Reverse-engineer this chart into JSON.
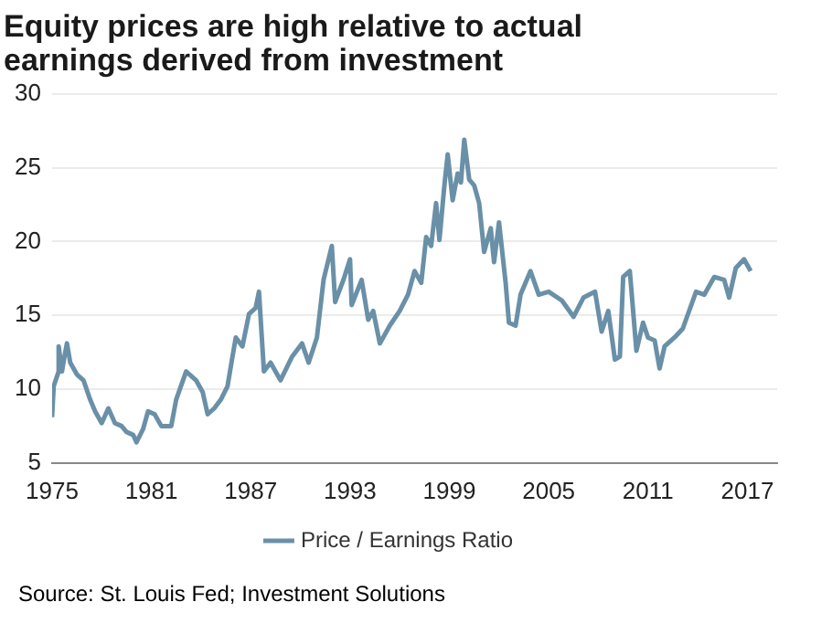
{
  "chart_data": {
    "type": "line",
    "title": [
      "Equity prices are high relative to actual",
      "earnings derived from investment"
    ],
    "xlim": [
      1975,
      2018.8
    ],
    "xticks": [
      1975,
      1981,
      1987,
      1993,
      1999,
      2005,
      2011,
      2017
    ],
    "ylim": [
      5,
      30
    ],
    "yticks": [
      5,
      10,
      15,
      20,
      25,
      30
    ],
    "grid": "y",
    "legend": "bottom",
    "marker": "none",
    "annotations": [
      "Source: St. Louis Fed; Investment Solutions"
    ],
    "series": [
      {
        "name": "Price / Earnings Ratio",
        "color": "#6a90a8",
        "x": [
          1975.0,
          1975.1,
          1975.4,
          1975.4,
          1975.6,
          1975.75,
          1975.9,
          1976.1,
          1976.5,
          1976.9,
          1977.3,
          1977.6,
          1978.0,
          1978.4,
          1978.8,
          1979.2,
          1979.5,
          1979.9,
          1980.1,
          1980.5,
          1980.8,
          1981.2,
          1981.6,
          1982.0,
          1982.2,
          1982.5,
          1983.1,
          1983.7,
          1984.1,
          1984.4,
          1984.8,
          1985.2,
          1985.6,
          1985.9,
          1986.1,
          1986.5,
          1986.9,
          1987.3,
          1987.5,
          1987.8,
          1988.2,
          1988.8,
          1989.5,
          1990.1,
          1990.5,
          1991.0,
          1991.4,
          1991.9,
          1992.1,
          1992.6,
          1993.0,
          1993.1,
          1993.7,
          1994.1,
          1994.4,
          1994.8,
          1995.4,
          1996.0,
          1996.5,
          1996.9,
          1997.3,
          1997.6,
          1997.9,
          1998.2,
          1998.4,
          1998.7,
          1998.9,
          1999.2,
          1999.5,
          1999.7,
          1999.9,
          2000.2,
          2000.5,
          2000.8,
          2001.1,
          2001.5,
          2001.7,
          2002.0,
          2002.4,
          2002.6,
          2003.0,
          2003.3,
          2003.9,
          2004.4,
          2005.0,
          2005.8,
          2006.5,
          2007.1,
          2007.8,
          2008.2,
          2008.6,
          2009.0,
          2009.3,
          2009.5,
          2009.9,
          2010.3,
          2010.7,
          2011.0,
          2011.4,
          2011.7,
          2012.0,
          2012.6,
          2013.1,
          2013.9,
          2014.4,
          2015.0,
          2015.6,
          2015.9,
          2016.3,
          2016.8,
          2017.2
        ],
        "values": [
          8.1,
          10.2,
          11.2,
          12.9,
          11.2,
          12.2,
          13.1,
          11.8,
          11.0,
          10.6,
          9.3,
          8.5,
          7.7,
          8.7,
          7.7,
          7.5,
          7.1,
          6.9,
          6.4,
          7.3,
          8.5,
          8.3,
          7.5,
          7.5,
          7.5,
          9.3,
          11.2,
          10.6,
          9.8,
          8.3,
          8.7,
          9.3,
          10.2,
          12.2,
          13.5,
          12.9,
          15.1,
          15.5,
          16.6,
          11.2,
          11.8,
          10.6,
          12.2,
          13.1,
          11.8,
          13.5,
          17.4,
          19.7,
          15.9,
          17.4,
          18.8,
          15.7,
          17.4,
          14.7,
          15.3,
          13.1,
          14.3,
          15.3,
          16.4,
          18.0,
          17.2,
          20.3,
          19.7,
          22.6,
          20.1,
          23.8,
          25.9,
          22.8,
          24.6,
          24.0,
          26.9,
          24.2,
          23.8,
          22.6,
          19.3,
          20.9,
          18.6,
          21.3,
          17.2,
          14.5,
          14.3,
          16.4,
          18.0,
          16.4,
          16.6,
          16.0,
          14.9,
          16.2,
          16.6,
          13.9,
          15.3,
          12.0,
          12.2,
          17.6,
          18.0,
          12.6,
          14.5,
          13.5,
          13.3,
          11.4,
          12.9,
          13.5,
          14.1,
          16.6,
          16.4,
          17.6,
          17.4,
          16.2,
          18.2,
          18.8,
          18.0
        ]
      }
    ]
  }
}
